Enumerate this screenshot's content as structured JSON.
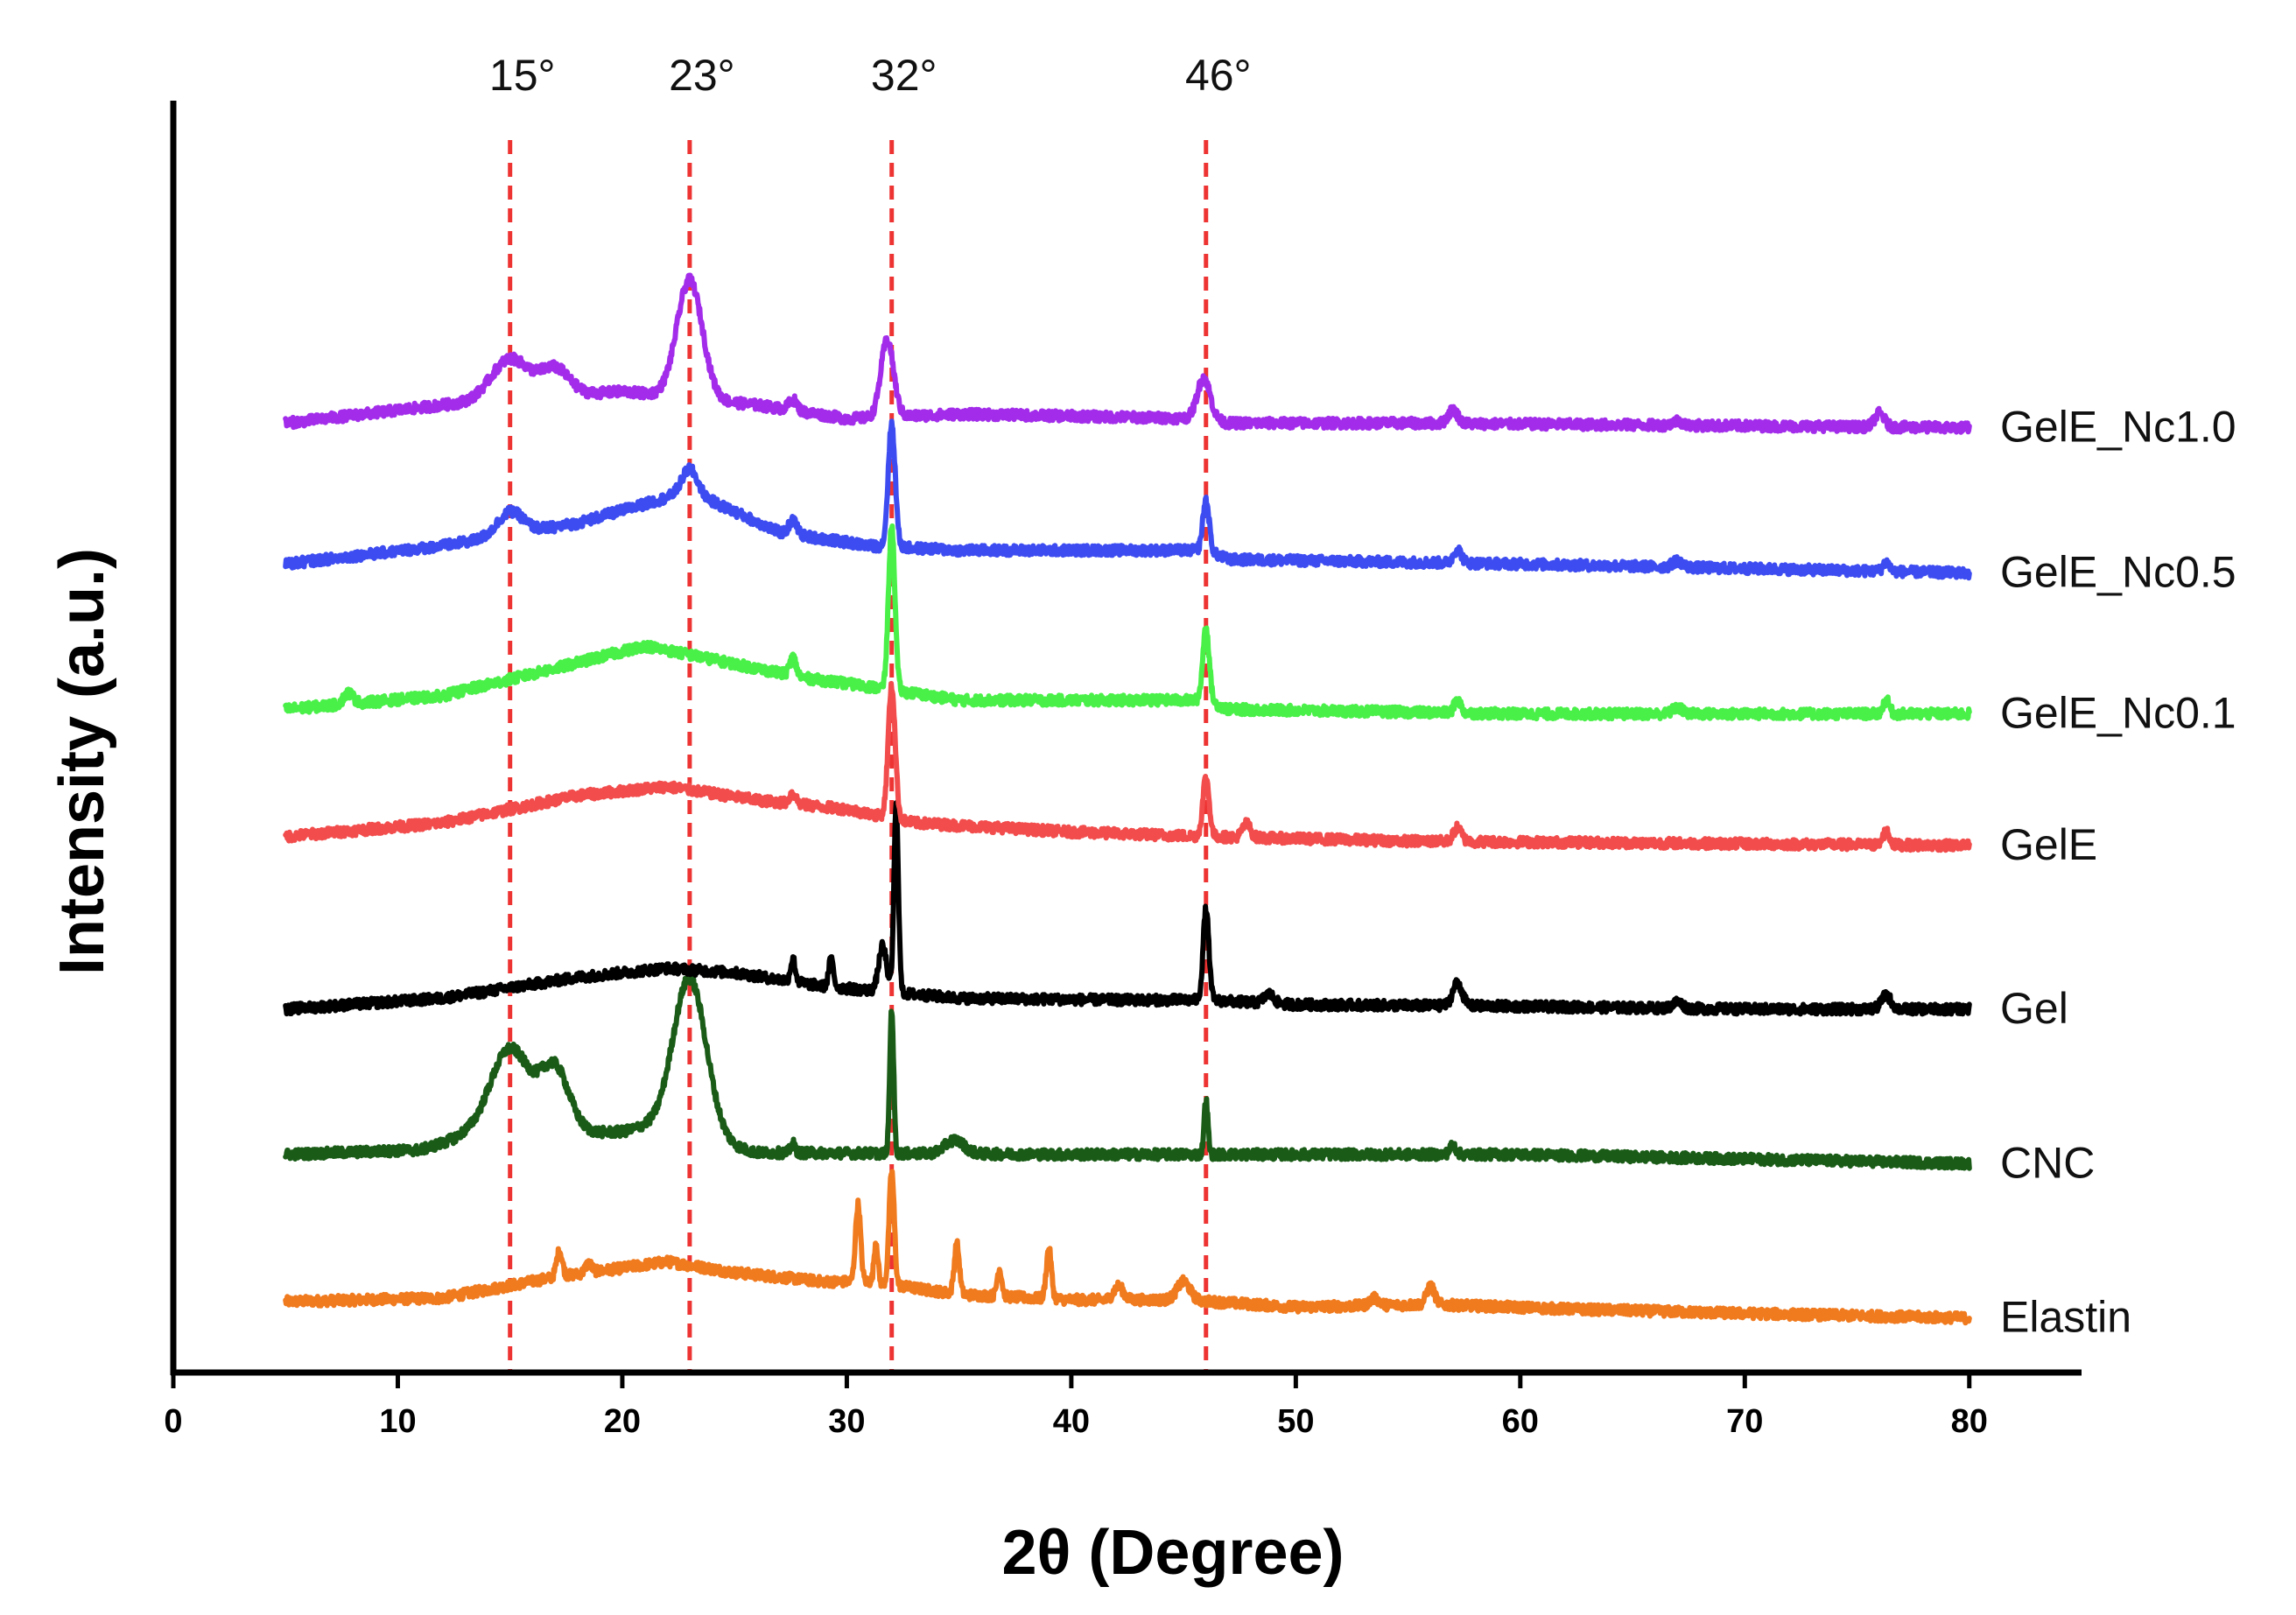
{
  "chart_data": {
    "type": "line",
    "title": "",
    "xlabel": "2θ (Degree)",
    "ylabel": "Intensity (a.u.)",
    "xlim": [
      0,
      85
    ],
    "x_ticks": [
      0,
      10,
      20,
      30,
      40,
      50,
      60,
      70,
      80
    ],
    "x_tick_labels": [
      "0",
      "10",
      "20",
      "30",
      "40",
      "50",
      "60",
      "70",
      "80"
    ],
    "ylim": [
      0,
      14
    ],
    "y_ticks_shown": false,
    "grid": false,
    "x_range_of_series": [
      5,
      80
    ],
    "reference_lines": [
      {
        "x": 15,
        "label": "15°",
        "color": "#ee3333"
      },
      {
        "x": 23,
        "label": "23°",
        "color": "#ee3333"
      },
      {
        "x": 32,
        "label": "32°",
        "color": "#ee3333"
      },
      {
        "x": 46,
        "label": "46°",
        "color": "#ee3333"
      }
    ],
    "series": [
      {
        "name": "Elastin",
        "color": "#f07a1e",
        "baseline": 0.7,
        "points": [
          [
            5,
            0.08
          ],
          [
            12,
            0.12
          ],
          [
            17,
            0.35
          ],
          [
            20,
            0.45
          ],
          [
            22,
            0.52
          ],
          [
            25,
            0.4
          ],
          [
            29,
            0.3
          ],
          [
            31,
            0.3
          ],
          [
            35,
            0.16
          ],
          [
            40,
            0.1
          ],
          [
            45,
            0.1
          ],
          [
            50,
            0.02
          ],
          [
            56,
            0.05
          ],
          [
            62,
            0.0
          ],
          [
            70,
            -0.05
          ],
          [
            80,
            -0.1
          ]
        ],
        "peaks": [
          [
            17.2,
            0.28,
            0.18
          ],
          [
            18.5,
            0.1,
            0.2
          ],
          [
            30.5,
            0.85,
            0.16
          ],
          [
            31.3,
            0.45,
            0.12
          ],
          [
            32.0,
            1.25,
            0.16
          ],
          [
            34.9,
            0.55,
            0.16
          ],
          [
            36.8,
            0.3,
            0.15
          ],
          [
            39.0,
            0.55,
            0.16
          ],
          [
            42.1,
            0.15,
            0.3
          ],
          [
            45.0,
            0.2,
            0.4
          ],
          [
            53.5,
            0.08,
            0.3
          ],
          [
            56.0,
            0.2,
            0.25
          ]
        ]
      },
      {
        "name": "CNC",
        "color": "#1a5c17",
        "baseline": 2.4,
        "points": [
          [
            5,
            0.0
          ],
          [
            11,
            0.05
          ],
          [
            13,
            0.2
          ],
          [
            20,
            0.25
          ],
          [
            21,
            0.3
          ],
          [
            26,
            0.02
          ],
          [
            40,
            0.0
          ],
          [
            60,
            0.0
          ],
          [
            80,
            -0.1
          ]
        ],
        "peaks": [
          [
            15,
            0.95,
            1.25
          ],
          [
            17,
            0.7,
            0.9
          ],
          [
            23,
            1.75,
            1.05
          ],
          [
            27.6,
            0.1,
            0.15
          ],
          [
            32.0,
            1.6,
            0.12
          ],
          [
            34.8,
            0.15,
            0.6
          ],
          [
            46.0,
            0.6,
            0.12
          ],
          [
            57.0,
            0.1,
            0.2
          ]
        ]
      },
      {
        "name": "Gel",
        "color": "#000000",
        "baseline": 4.0,
        "points": [
          [
            5,
            0.0
          ],
          [
            12,
            0.12
          ],
          [
            18,
            0.35
          ],
          [
            22,
            0.45
          ],
          [
            25,
            0.4
          ],
          [
            29,
            0.25
          ],
          [
            35,
            0.12
          ],
          [
            42,
            0.1
          ],
          [
            46,
            0.1
          ],
          [
            50,
            0.05
          ],
          [
            60,
            0.03
          ],
          [
            70,
            0.0
          ],
          [
            80,
            0.0
          ]
        ],
        "peaks": [
          [
            27.6,
            0.25,
            0.15
          ],
          [
            29.3,
            0.3,
            0.15
          ],
          [
            31.6,
            0.5,
            0.25
          ],
          [
            32.2,
            2.05,
            0.14
          ],
          [
            46.0,
            1.0,
            0.18
          ],
          [
            48.8,
            0.1,
            0.3
          ],
          [
            57.2,
            0.25,
            0.3
          ],
          [
            67,
            0.07,
            0.3
          ],
          [
            76.3,
            0.15,
            0.3
          ]
        ]
      },
      {
        "name": "GelE",
        "color": "#f24c4c",
        "baseline": 5.9,
        "points": [
          [
            5,
            0.0
          ],
          [
            12,
            0.15
          ],
          [
            18,
            0.45
          ],
          [
            22,
            0.55
          ],
          [
            26,
            0.4
          ],
          [
            30,
            0.3
          ],
          [
            33,
            0.15
          ],
          [
            40,
            0.05
          ],
          [
            46,
            0.0
          ],
          [
            55,
            -0.05
          ],
          [
            80,
            -0.1
          ]
        ],
        "peaks": [
          [
            27.6,
            0.12,
            0.2
          ],
          [
            32.0,
            1.45,
            0.22
          ],
          [
            46.0,
            0.65,
            0.2
          ],
          [
            47.8,
            0.15,
            0.25
          ],
          [
            57.2,
            0.15,
            0.25
          ],
          [
            76.3,
            0.15,
            0.2
          ]
        ]
      },
      {
        "name": "GelE_Nc0.1",
        "color": "#49f048",
        "baseline": 7.3,
        "points": [
          [
            5,
            0.0
          ],
          [
            12,
            0.15
          ],
          [
            17,
            0.45
          ],
          [
            21,
            0.7
          ],
          [
            24,
            0.55
          ],
          [
            28,
            0.35
          ],
          [
            31,
            0.25
          ],
          [
            35,
            0.1
          ],
          [
            46,
            0.1
          ],
          [
            47,
            0.0
          ],
          [
            60,
            -0.05
          ],
          [
            80,
            -0.05
          ]
        ],
        "peaks": [
          [
            7.8,
            0.12,
            0.3
          ],
          [
            27.6,
            0.2,
            0.2
          ],
          [
            32.0,
            1.8,
            0.2
          ],
          [
            46.0,
            0.8,
            0.2
          ],
          [
            57.2,
            0.15,
            0.2
          ],
          [
            67,
            0.07,
            0.3
          ],
          [
            76.3,
            0.15,
            0.2
          ]
        ]
      },
      {
        "name": "GelE_Nc0.5",
        "color": "#3d4cf0",
        "baseline": 8.9,
        "points": [
          [
            5,
            0.0
          ],
          [
            12,
            0.2
          ],
          [
            18,
            0.45
          ],
          [
            23,
            0.8
          ],
          [
            27,
            0.35
          ],
          [
            31,
            0.2
          ],
          [
            35,
            0.15
          ],
          [
            46,
            0.15
          ],
          [
            47,
            0.05
          ],
          [
            60,
            0.0
          ],
          [
            80,
            -0.1
          ]
        ],
        "peaks": [
          [
            15,
            0.25,
            0.8
          ],
          [
            23,
            0.25,
            0.5
          ],
          [
            27.6,
            0.15,
            0.25
          ],
          [
            32.0,
            1.35,
            0.22
          ],
          [
            46.0,
            0.55,
            0.2
          ],
          [
            57.2,
            0.15,
            0.25
          ],
          [
            67,
            0.07,
            0.3
          ],
          [
            76.3,
            0.1,
            0.2
          ]
        ]
      },
      {
        "name": "GelE_Nc1.0",
        "color": "#a22cea",
        "baseline": 10.45,
        "points": [
          [
            5,
            0.0
          ],
          [
            12,
            0.2
          ],
          [
            20,
            0.35
          ],
          [
            26,
            0.2
          ],
          [
            30,
            0.05
          ],
          [
            35,
            0.1
          ],
          [
            46,
            0.05
          ],
          [
            47,
            0.0
          ],
          [
            55,
            0.0
          ],
          [
            80,
            -0.05
          ]
        ],
        "peaks": [
          [
            15,
            0.45,
            1.2
          ],
          [
            17,
            0.3,
            0.9
          ],
          [
            23,
            1.3,
            0.8
          ],
          [
            27.6,
            0.12,
            0.25
          ],
          [
            31.8,
            0.85,
            0.4
          ],
          [
            45.9,
            0.45,
            0.4
          ],
          [
            57,
            0.15,
            0.3
          ],
          [
            67,
            0.05,
            0.3
          ],
          [
            76,
            0.15,
            0.3
          ]
        ]
      }
    ]
  }
}
